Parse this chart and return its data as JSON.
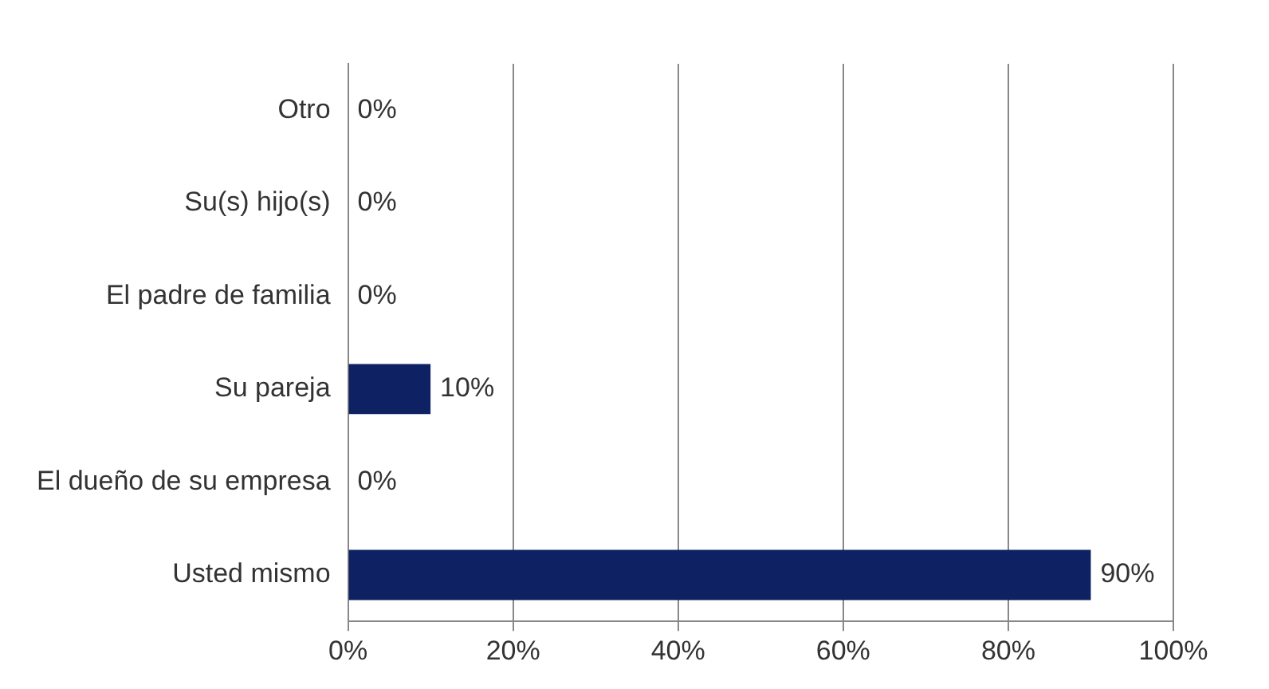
{
  "chart_data": {
    "type": "bar",
    "orientation": "horizontal",
    "categories": [
      "Otro",
      "Su(s) hijo(s)",
      "El padre de familia",
      "Su pareja",
      "El dueño de su empresa",
      "Usted mismo"
    ],
    "values": [
      0,
      0,
      0,
      10,
      0,
      90
    ],
    "value_labels": [
      "0%",
      "0%",
      "0%",
      "10%",
      "0%",
      "90%"
    ],
    "color": "#0d2163",
    "xlim": [
      0,
      100
    ],
    "xticks": [
      {
        "value": 0,
        "label": "0%"
      },
      {
        "value": 20,
        "label": "20%"
      },
      {
        "value": 40,
        "label": "40%"
      },
      {
        "value": 60,
        "label": "60%"
      },
      {
        "value": 80,
        "label": "80%"
      },
      {
        "value": 100,
        "label": "100%"
      }
    ],
    "grid": "x",
    "legend": false
  }
}
